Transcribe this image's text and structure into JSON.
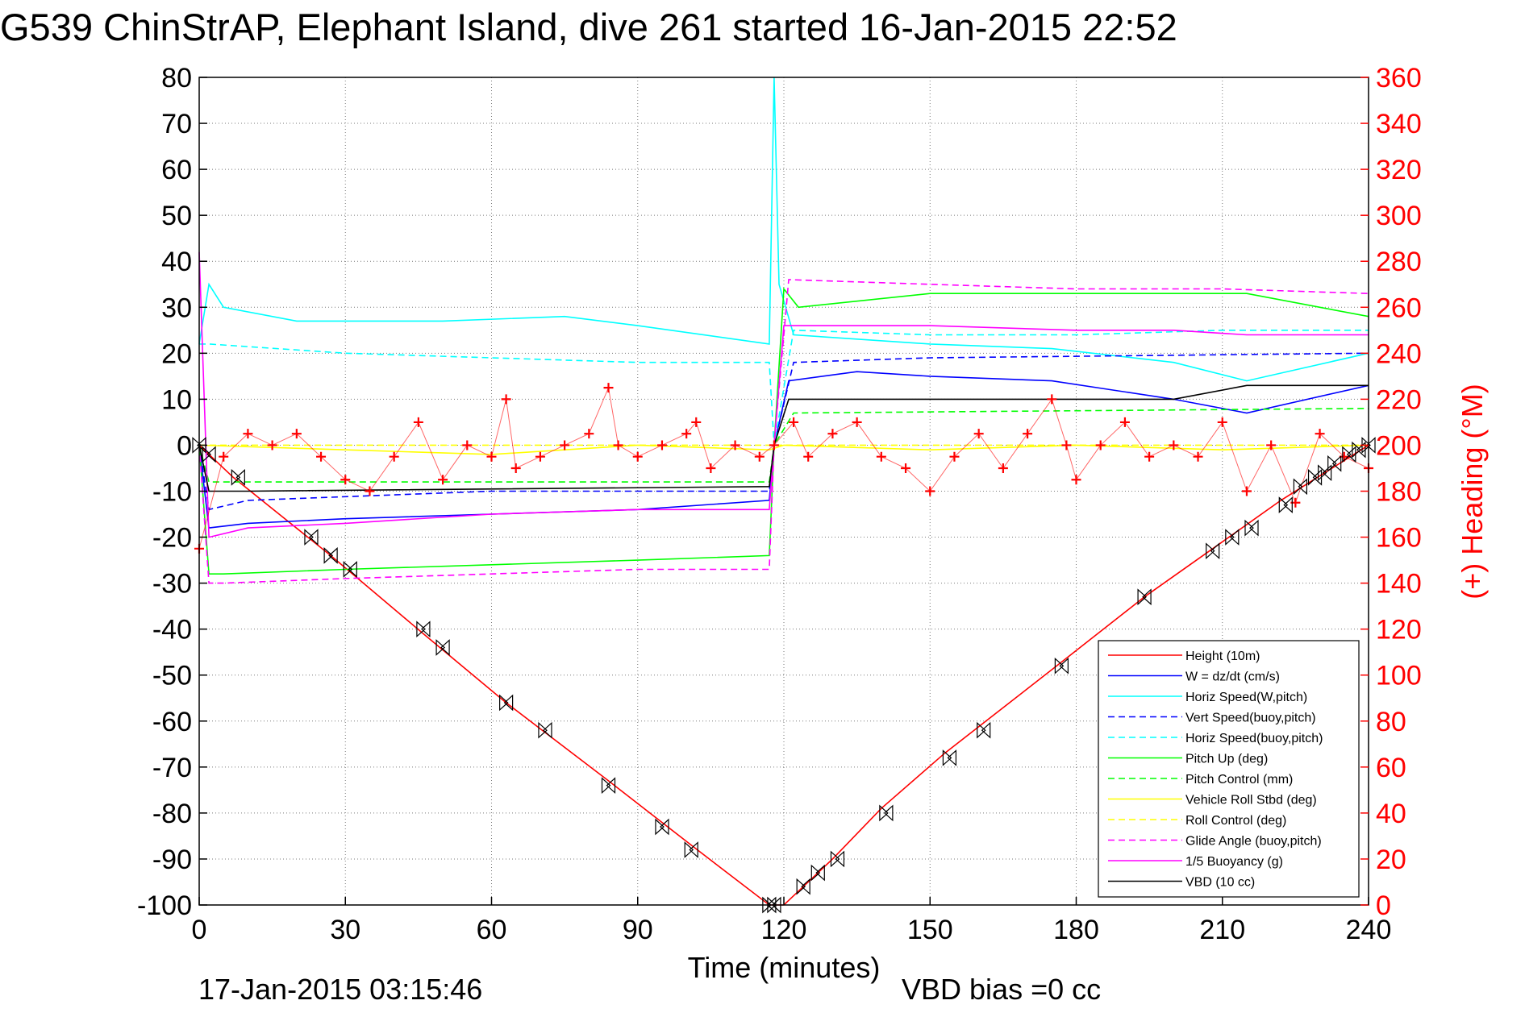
{
  "chart_data": {
    "type": "line",
    "title": "G539 ChinStrAP, Elephant Island, dive 261 started 16-Jan-2015 22:52",
    "xlabel": "Time (minutes)",
    "ylabel_right": "(+) Heading (°M)",
    "xlim": [
      0,
      240
    ],
    "ylim": [
      -100,
      80
    ],
    "ylim_right": [
      0,
      360
    ],
    "x_ticks": [
      "0",
      "30",
      "60",
      "90",
      "120",
      "150",
      "180",
      "210",
      "240"
    ],
    "y_ticks": [
      "80",
      "70",
      "60",
      "50",
      "40",
      "30",
      "20",
      "10",
      "0",
      "-10",
      "-20",
      "-30",
      "-40",
      "-50",
      "-60",
      "-70",
      "-80",
      "-90",
      "-100"
    ],
    "y_ticks_right": [
      "360",
      "340",
      "320",
      "300",
      "280",
      "260",
      "240",
      "220",
      "200",
      "180",
      "160",
      "140",
      "120",
      "100",
      "80",
      "60",
      "40",
      "20",
      "0"
    ],
    "grid": true,
    "legend_position": "bottom-right",
    "footer_left": "17-Jan-2015 03:15:46",
    "footer_right": "VBD bias =0 cc",
    "series": [
      {
        "name": "Height (10m)",
        "color": "#ff0000",
        "style": "solid",
        "x": [
          0,
          7,
          27,
          46,
          63,
          84,
          101,
          117,
          120,
          130,
          140,
          153,
          176,
          194,
          210,
          222,
          240
        ],
        "y": [
          0,
          -7,
          -24,
          -41,
          -56,
          -73,
          -87,
          -100,
          -100,
          -90,
          -79,
          -67,
          -48,
          -33,
          -21,
          -12,
          0
        ]
      },
      {
        "name": "W = dz/dt (cm/s)",
        "color": "#0000ff",
        "style": "solid",
        "x": [
          0,
          2,
          10,
          30,
          60,
          90,
          117,
          118,
          121,
          135,
          150,
          175,
          200,
          215,
          240
        ],
        "y": [
          0,
          -18,
          -17,
          -16,
          -15,
          -14,
          -12,
          0,
          14,
          16,
          15,
          14,
          10,
          7,
          13
        ]
      },
      {
        "name": "Horiz Speed(W,pitch)",
        "color": "#00ffff",
        "style": "solid",
        "x": [
          0,
          2,
          5,
          20,
          50,
          75,
          90,
          117,
          118,
          119,
          122,
          150,
          175,
          200,
          215,
          240
        ],
        "y": [
          22,
          35,
          30,
          27,
          27,
          28,
          26,
          22,
          80,
          35,
          24,
          22,
          21,
          18,
          14,
          20
        ]
      },
      {
        "name": "Vert Speed(buoy,pitch)",
        "color": "#0000ff",
        "style": "dashed",
        "x": [
          0,
          2,
          10,
          60,
          117,
          118,
          122,
          150,
          240
        ],
        "y": [
          0,
          -14,
          -12,
          -10,
          -10,
          0,
          18,
          19,
          20
        ]
      },
      {
        "name": "Horiz Speed(buoy,pitch)",
        "color": "#00ffff",
        "style": "dashed",
        "x": [
          0,
          2,
          30,
          60,
          90,
          117,
          118,
          122,
          150,
          180,
          210,
          240
        ],
        "y": [
          22,
          22,
          20,
          19,
          18,
          18,
          0,
          25,
          24,
          24,
          25,
          25
        ]
      },
      {
        "name": "Pitch Up (deg)",
        "color": "#00ff00",
        "style": "solid",
        "x": [
          0,
          2,
          5,
          30,
          60,
          90,
          117,
          118,
          120,
          123,
          150,
          176,
          200,
          215,
          230,
          240
        ],
        "y": [
          0,
          -28,
          -28,
          -27,
          -26,
          -25,
          -24,
          0,
          34,
          30,
          33,
          33,
          33,
          33,
          30,
          28
        ]
      },
      {
        "name": "Pitch Control (mm)",
        "color": "#00ff00",
        "style": "dashed",
        "x": [
          0,
          2,
          117,
          118,
          122,
          240
        ],
        "y": [
          0,
          -8,
          -8,
          0,
          7,
          8
        ]
      },
      {
        "name": "Vehicle Roll Stbd (deg)",
        "color": "#ffff00",
        "style": "solid",
        "x": [
          0,
          30,
          60,
          90,
          117,
          120,
          150,
          180,
          210,
          240
        ],
        "y": [
          0,
          -1,
          -2,
          0,
          -1,
          0,
          -1,
          0,
          -1,
          0
        ]
      },
      {
        "name": "Roll Control (deg)",
        "color": "#ffff00",
        "style": "dashed",
        "x": [
          0,
          117,
          118,
          240
        ],
        "y": [
          0,
          0,
          0,
          0
        ]
      },
      {
        "name": "Glide Angle (buoy,pitch)",
        "color": "#ff00ff",
        "style": "dashed",
        "x": [
          0,
          2,
          5,
          30,
          60,
          90,
          117,
          118,
          121,
          150,
          180,
          210,
          240
        ],
        "y": [
          0,
          -30,
          -30,
          -29,
          -28,
          -27,
          -27,
          0,
          36,
          35,
          34,
          34,
          33
        ]
      },
      {
        "name": "1/5 Buoyancy (g)",
        "color": "#ff00ff",
        "style": "solid",
        "x": [
          0,
          2,
          10,
          30,
          60,
          90,
          117,
          118,
          120,
          150,
          180,
          200,
          215,
          240
        ],
        "y": [
          42,
          -20,
          -18,
          -17,
          -15,
          -14,
          -14,
          0,
          26,
          26,
          25,
          25,
          24,
          24
        ]
      },
      {
        "name": "VBD (10 cc)",
        "color": "#000000",
        "style": "solid",
        "x": [
          0,
          2,
          10,
          117,
          118,
          121,
          150,
          180,
          200,
          215,
          240
        ],
        "y": [
          0,
          -10,
          -10,
          -9,
          0,
          10,
          10,
          10,
          10,
          13,
          13
        ]
      }
    ],
    "heading_markers": {
      "color": "#ff0000",
      "marker": "+",
      "axis": "right",
      "x": [
        0,
        5,
        10,
        15,
        20,
        25,
        30,
        35,
        40,
        45,
        50,
        55,
        60,
        63,
        65,
        70,
        75,
        80,
        84,
        86,
        90,
        95,
        100,
        102,
        105,
        110,
        115,
        118,
        122,
        125,
        130,
        135,
        140,
        145,
        150,
        155,
        160,
        165,
        170,
        175,
        178,
        180,
        185,
        190,
        195,
        200,
        205,
        210,
        215,
        220,
        225,
        230,
        235,
        240
      ],
      "y": [
        155,
        195,
        205,
        200,
        205,
        195,
        185,
        180,
        195,
        210,
        185,
        200,
        195,
        220,
        190,
        195,
        200,
        205,
        225,
        200,
        195,
        200,
        205,
        210,
        190,
        200,
        195,
        200,
        210,
        195,
        205,
        210,
        195,
        190,
        180,
        195,
        205,
        190,
        205,
        220,
        200,
        185,
        200,
        210,
        195,
        200,
        195,
        210,
        180,
        200,
        175,
        205,
        195,
        190
      ]
    },
    "depth_markers": {
      "color": "#000000",
      "marker": "triangle-pair",
      "x": [
        0,
        2,
        8,
        23,
        27,
        31,
        46,
        50,
        63,
        71,
        84,
        95,
        101,
        117,
        118,
        124,
        127,
        131,
        141,
        154,
        161,
        177,
        194,
        208,
        212,
        216,
        223,
        226,
        229,
        231,
        233,
        236,
        238,
        240
      ],
      "y": [
        0,
        -2,
        -7,
        -20,
        -24,
        -27,
        -40,
        -44,
        -56,
        -62,
        -74,
        -83,
        -88,
        -100,
        -100,
        -96,
        -93,
        -90,
        -80,
        -68,
        -62,
        -48,
        -33,
        -23,
        -20,
        -18,
        -13,
        -9,
        -7,
        -6,
        -4,
        -2,
        -1,
        0
      ]
    }
  }
}
